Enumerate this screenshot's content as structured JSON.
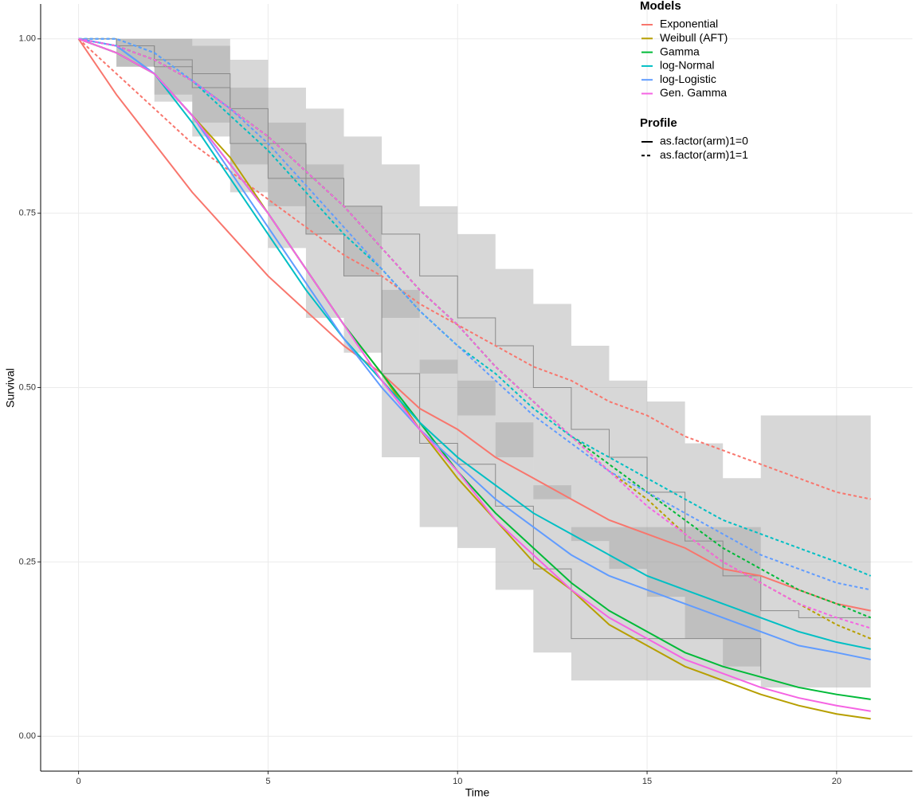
{
  "chart_data": {
    "type": "line",
    "xlabel": "Time",
    "ylabel": "Survival",
    "xlim": [
      -1,
      22
    ],
    "ylim": [
      -0.05,
      1.05
    ],
    "xticks": [
      0,
      5,
      10,
      15,
      20
    ],
    "yticks": [
      {
        "value": 0,
        "label": "0.00"
      },
      {
        "value": 0.25,
        "label": "0.25"
      },
      {
        "value": 0.5,
        "label": "0.50"
      },
      {
        "value": 0.75,
        "label": "0.75"
      },
      {
        "value": 1,
        "label": "1.00"
      }
    ],
    "grid": true,
    "legend_title": "Models",
    "profile_title": "Profile",
    "profiles": [
      {
        "name": "as.factor(arm)1=0",
        "dashed": false
      },
      {
        "name": "as.factor(arm)1=1",
        "dashed": true
      }
    ],
    "x": [
      0,
      1,
      2,
      3,
      4,
      5,
      6,
      7,
      8,
      9,
      10,
      11,
      12,
      13,
      14,
      15,
      16,
      17,
      18,
      19,
      20,
      20.9
    ],
    "series": [
      {
        "name": "Exponential",
        "color": "#F8766D",
        "values": [
          [
            1,
            0.92,
            0.85,
            0.78,
            0.72,
            0.66,
            0.61,
            0.56,
            0.52,
            0.47,
            0.44,
            0.4,
            0.37,
            0.34,
            0.31,
            0.29,
            0.27,
            0.24,
            0.23,
            0.21,
            0.19,
            0.18
          ],
          [
            1,
            0.95,
            0.9,
            0.85,
            0.81,
            0.77,
            0.73,
            0.69,
            0.66,
            0.62,
            0.59,
            0.56,
            0.53,
            0.51,
            0.48,
            0.46,
            0.43,
            0.41,
            0.39,
            0.37,
            0.35,
            0.34
          ]
        ]
      },
      {
        "name": "Weibull (AFT)",
        "color": "#B79F00",
        "values": [
          [
            1,
            0.98,
            0.95,
            0.89,
            0.83,
            0.75,
            0.67,
            0.59,
            0.52,
            0.44,
            0.37,
            0.31,
            0.25,
            0.21,
            0.16,
            0.13,
            0.1,
            0.08,
            0.06,
            0.044,
            0.032,
            0.025
          ],
          [
            1,
            0.99,
            0.97,
            0.94,
            0.9,
            0.86,
            0.81,
            0.76,
            0.7,
            0.64,
            0.59,
            0.53,
            0.48,
            0.43,
            0.38,
            0.34,
            0.29,
            0.25,
            0.22,
            0.19,
            0.16,
            0.14
          ]
        ]
      },
      {
        "name": "Gamma",
        "color": "#00BA38",
        "values": [
          [
            1,
            0.98,
            0.95,
            0.89,
            0.82,
            0.75,
            0.67,
            0.59,
            0.52,
            0.45,
            0.38,
            0.32,
            0.27,
            0.22,
            0.18,
            0.15,
            0.12,
            0.1,
            0.085,
            0.07,
            0.06,
            0.053
          ],
          [
            1,
            0.99,
            0.97,
            0.94,
            0.9,
            0.86,
            0.81,
            0.76,
            0.7,
            0.64,
            0.59,
            0.53,
            0.48,
            0.43,
            0.39,
            0.35,
            0.31,
            0.27,
            0.24,
            0.21,
            0.19,
            0.17
          ]
        ]
      },
      {
        "name": "log-Normal",
        "color": "#00BFC4",
        "values": [
          [
            1,
            0.99,
            0.95,
            0.88,
            0.8,
            0.72,
            0.64,
            0.57,
            0.51,
            0.45,
            0.4,
            0.36,
            0.32,
            0.29,
            0.26,
            0.23,
            0.21,
            0.19,
            0.17,
            0.15,
            0.135,
            0.125
          ],
          [
            1,
            1,
            0.98,
            0.94,
            0.89,
            0.84,
            0.78,
            0.72,
            0.67,
            0.61,
            0.56,
            0.52,
            0.47,
            0.43,
            0.4,
            0.37,
            0.34,
            0.31,
            0.29,
            0.27,
            0.25,
            0.23
          ]
        ]
      },
      {
        "name": "log-Logistic",
        "color": "#619CFF",
        "values": [
          [
            1,
            0.99,
            0.95,
            0.89,
            0.81,
            0.73,
            0.65,
            0.57,
            0.5,
            0.44,
            0.39,
            0.34,
            0.3,
            0.26,
            0.23,
            0.21,
            0.19,
            0.17,
            0.15,
            0.13,
            0.12,
            0.11
          ],
          [
            1,
            1,
            0.98,
            0.94,
            0.9,
            0.85,
            0.79,
            0.73,
            0.67,
            0.61,
            0.56,
            0.51,
            0.46,
            0.42,
            0.38,
            0.35,
            0.32,
            0.29,
            0.26,
            0.24,
            0.22,
            0.21
          ]
        ]
      },
      {
        "name": "Gen. Gamma",
        "color": "#F564E3",
        "values": [
          [
            1,
            0.98,
            0.95,
            0.89,
            0.82,
            0.75,
            0.67,
            0.59,
            0.51,
            0.44,
            0.38,
            0.31,
            0.26,
            0.21,
            0.17,
            0.14,
            0.11,
            0.09,
            0.07,
            0.055,
            0.044,
            0.036
          ],
          [
            1,
            0.99,
            0.97,
            0.94,
            0.9,
            0.86,
            0.81,
            0.76,
            0.7,
            0.64,
            0.59,
            0.53,
            0.48,
            0.43,
            0.38,
            0.33,
            0.29,
            0.25,
            0.22,
            0.19,
            0.17,
            0.155
          ]
        ]
      }
    ],
    "km": [
      {
        "x": [
          0,
          1,
          2,
          3,
          4,
          5,
          6,
          7,
          8,
          9,
          10,
          11,
          12,
          13,
          14,
          15,
          16,
          17,
          18
        ],
        "values": [
          1,
          0.99,
          0.96,
          0.93,
          0.85,
          0.8,
          0.72,
          0.66,
          0.52,
          0.42,
          0.39,
          0.33,
          0.24,
          0.14,
          0.14,
          0.14,
          0.14,
          0.14,
          0.09
        ],
        "lower": [
          1,
          0.96,
          0.91,
          0.86,
          0.78,
          0.7,
          0.6,
          0.55,
          0.4,
          0.3,
          0.27,
          0.21,
          0.12,
          0.08,
          0.08,
          0.08,
          0.08,
          0.08,
          0.04
        ],
        "upper": [
          1,
          1,
          1,
          0.99,
          0.93,
          0.88,
          0.82,
          0.76,
          0.64,
          0.54,
          0.51,
          0.45,
          0.36,
          0.3,
          0.3,
          0.3,
          0.3,
          0.3,
          0.26
        ]
      },
      {
        "x": [
          0,
          1,
          2,
          3,
          4,
          5,
          6,
          7,
          8,
          9,
          10,
          11,
          12,
          13,
          14,
          15,
          16,
          17,
          18,
          19,
          20,
          20.9
        ],
        "values": [
          1,
          0.99,
          0.97,
          0.95,
          0.9,
          0.85,
          0.8,
          0.76,
          0.72,
          0.66,
          0.6,
          0.56,
          0.5,
          0.44,
          0.4,
          0.35,
          0.28,
          0.23,
          0.18,
          0.17,
          0.17,
          0.17
        ],
        "lower": [
          1,
          0.96,
          0.92,
          0.88,
          0.82,
          0.76,
          0.72,
          0.66,
          0.6,
          0.52,
          0.46,
          0.4,
          0.34,
          0.28,
          0.24,
          0.2,
          0.14,
          0.1,
          0.07,
          0.07,
          0.07,
          0.07
        ],
        "upper": [
          1,
          1,
          1,
          1,
          0.97,
          0.93,
          0.9,
          0.86,
          0.82,
          0.76,
          0.72,
          0.67,
          0.62,
          0.56,
          0.51,
          0.48,
          0.42,
          0.37,
          0.46,
          0.46,
          0.46,
          0.46
        ]
      }
    ]
  }
}
